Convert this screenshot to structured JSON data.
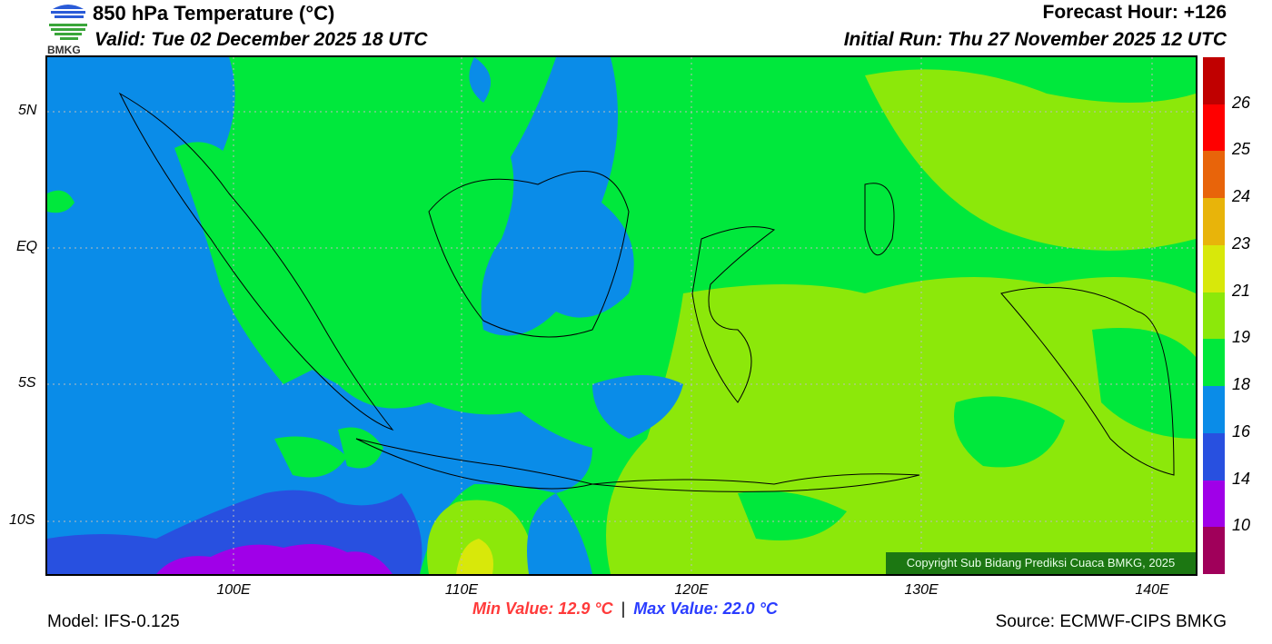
{
  "header": {
    "title": "850 hPa Temperature (°C)",
    "valid": "Valid: Tue 02 December 2025 18 UTC",
    "forecast_hour": "Forecast Hour: +126",
    "initial_run": "Initial Run: Thu 27 November 2025 12 UTC",
    "logo_text": "BMKG"
  },
  "map": {
    "lat_ticks": [
      "5N",
      "EQ",
      "5S",
      "10S"
    ],
    "lon_ticks": [
      "100E",
      "110E",
      "120E",
      "130E",
      "140E"
    ],
    "extent": {
      "lon": [
        92,
        142
      ],
      "lat": [
        -12,
        7
      ]
    }
  },
  "colorbar": {
    "colors": [
      "#c00000",
      "#ff0000",
      "#e8640a",
      "#e8b40a",
      "#d8e80a",
      "#8ce80a",
      "#00e83c",
      "#0a8ce8",
      "#2850e0",
      "#a000e8",
      "#a0005a"
    ],
    "labels": [
      "26",
      "25",
      "24",
      "23",
      "21",
      "19",
      "18",
      "16",
      "14",
      "10"
    ]
  },
  "copyright": "Copyright Sub Bidang Prediksi Cuaca BMKG, 2025",
  "stats": {
    "min": "Min Value: 12.9 °C",
    "separator": "|",
    "max": "Max Value: 22.0 °C",
    "min_color": "#ff3a3a",
    "max_color": "#2a3cff"
  },
  "footer": {
    "model": "Model: IFS-0.125",
    "source": "Source: ECMWF-CIPS BMKG"
  }
}
